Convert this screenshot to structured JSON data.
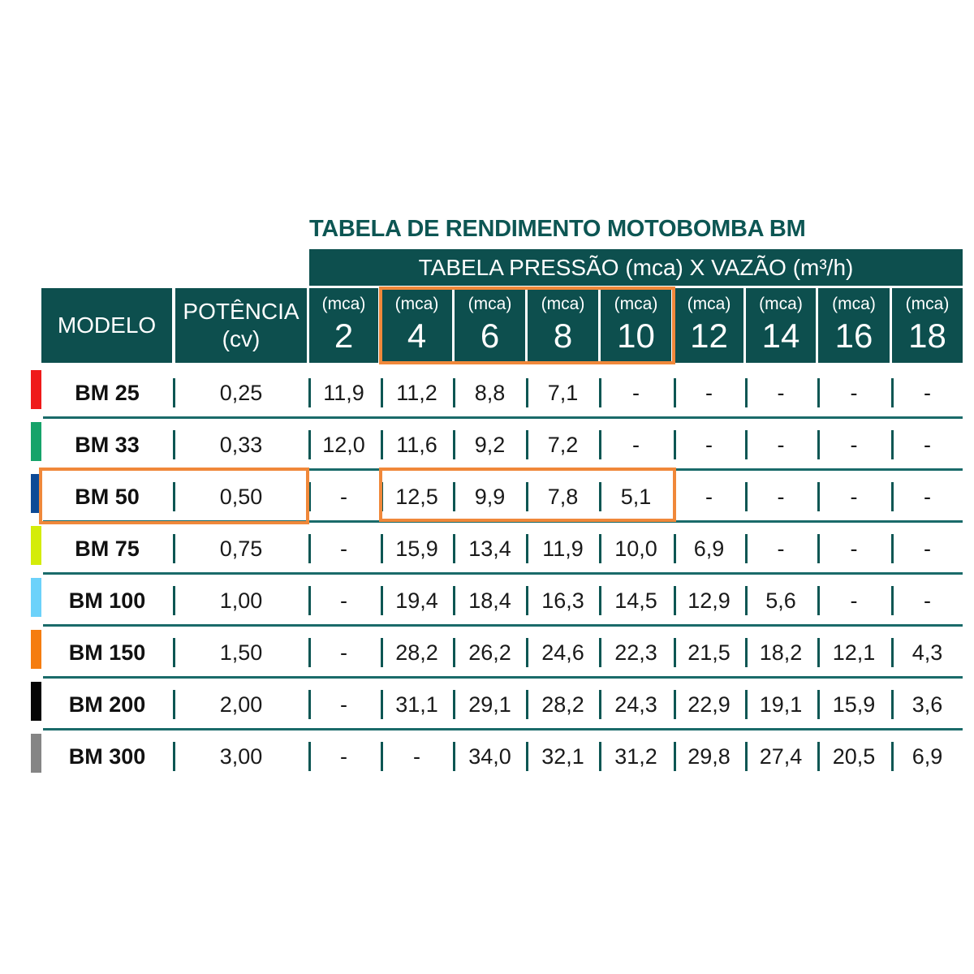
{
  "title": "TABELA DE RENDIMENTO MOTOBOMBA BM",
  "super_header": "TABELA PRESSÃO (mca) X VAZÃO (m³/h)",
  "colors": {
    "header_bg": "#0d4f4e",
    "title_text": "#0d5653",
    "highlight": "#f0883a"
  },
  "header": {
    "model": "MODELO",
    "power_line1": "POTÊNCIA",
    "power_line2": "(cv)",
    "pressure_unit": "(mca)",
    "pressures": [
      "2",
      "4",
      "6",
      "8",
      "10",
      "12",
      "14",
      "16",
      "18"
    ]
  },
  "rows": [
    {
      "model": "BM 25",
      "power": "0,25",
      "color": "#ef1a1a",
      "values": [
        "11,9",
        "11,2",
        "8,8",
        "7,1",
        "-",
        "-",
        "-",
        "-",
        "-"
      ]
    },
    {
      "model": "BM 33",
      "power": "0,33",
      "color": "#16a36a",
      "values": [
        "12,0",
        "11,6",
        "9,2",
        "7,2",
        "-",
        "-",
        "-",
        "-",
        "-"
      ]
    },
    {
      "model": "BM 50",
      "power": "0,50",
      "color": "#0d4a96",
      "values": [
        "-",
        "12,5",
        "9,9",
        "7,8",
        "5,1",
        "-",
        "-",
        "-",
        "-"
      ]
    },
    {
      "model": "BM 75",
      "power": "0,75",
      "color": "#d4ec0a",
      "values": [
        "-",
        "15,9",
        "13,4",
        "11,9",
        "10,0",
        "6,9",
        "-",
        "-",
        "-"
      ]
    },
    {
      "model": "BM 100",
      "power": "1,00",
      "color": "#6cd2fa",
      "values": [
        "-",
        "19,4",
        "18,4",
        "16,3",
        "14,5",
        "12,9",
        "5,6",
        "-",
        "-"
      ]
    },
    {
      "model": "BM 150",
      "power": "1,50",
      "color": "#f57d10",
      "values": [
        "-",
        "28,2",
        "26,2",
        "24,6",
        "22,3",
        "21,5",
        "18,2",
        "12,1",
        "4,3"
      ]
    },
    {
      "model": "BM 200",
      "power": "2,00",
      "color": "#050505",
      "values": [
        "-",
        "31,1",
        "29,1",
        "28,2",
        "24,3",
        "22,9",
        "19,1",
        "15,9",
        "3,6"
      ]
    },
    {
      "model": "BM 300",
      "power": "3,00",
      "color": "#858585",
      "values": [
        "-",
        "-",
        "34,0",
        "32,1",
        "31,2",
        "29,8",
        "27,4",
        "20,5",
        "6,9"
      ]
    }
  ],
  "highlights": [
    {
      "label": "pressure-4-to-10-header"
    },
    {
      "label": "bm50-model-power"
    },
    {
      "label": "bm50-values-4-to-10"
    }
  ]
}
